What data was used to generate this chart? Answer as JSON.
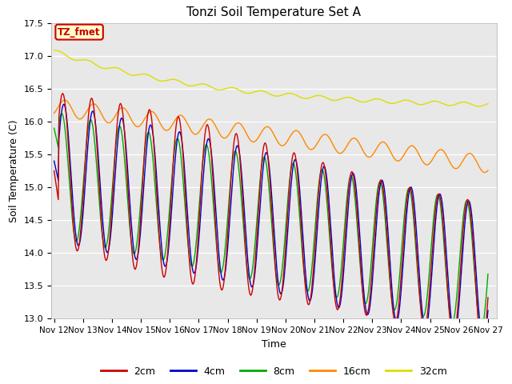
{
  "title": "Tonzi Soil Temperature Set A",
  "xlabel": "Time",
  "ylabel": "Soil Temperature (C)",
  "ylim": [
    13.0,
    17.5
  ],
  "start_day": 12,
  "n_days": 15,
  "background_color": "#ffffff",
  "plot_bg_color": "#e8e8e8",
  "legend_labels": [
    "2cm",
    "4cm",
    "8cm",
    "16cm",
    "32cm"
  ],
  "legend_colors": [
    "#cc0000",
    "#0000cc",
    "#00aa00",
    "#ff8800",
    "#dddd00"
  ],
  "annotation_text": "TZ_fmet",
  "annotation_bg": "#ffffcc",
  "annotation_border": "#cc0000",
  "yticks": [
    13.0,
    13.5,
    14.0,
    14.5,
    15.0,
    15.5,
    16.0,
    16.5,
    17.0,
    17.5
  ]
}
